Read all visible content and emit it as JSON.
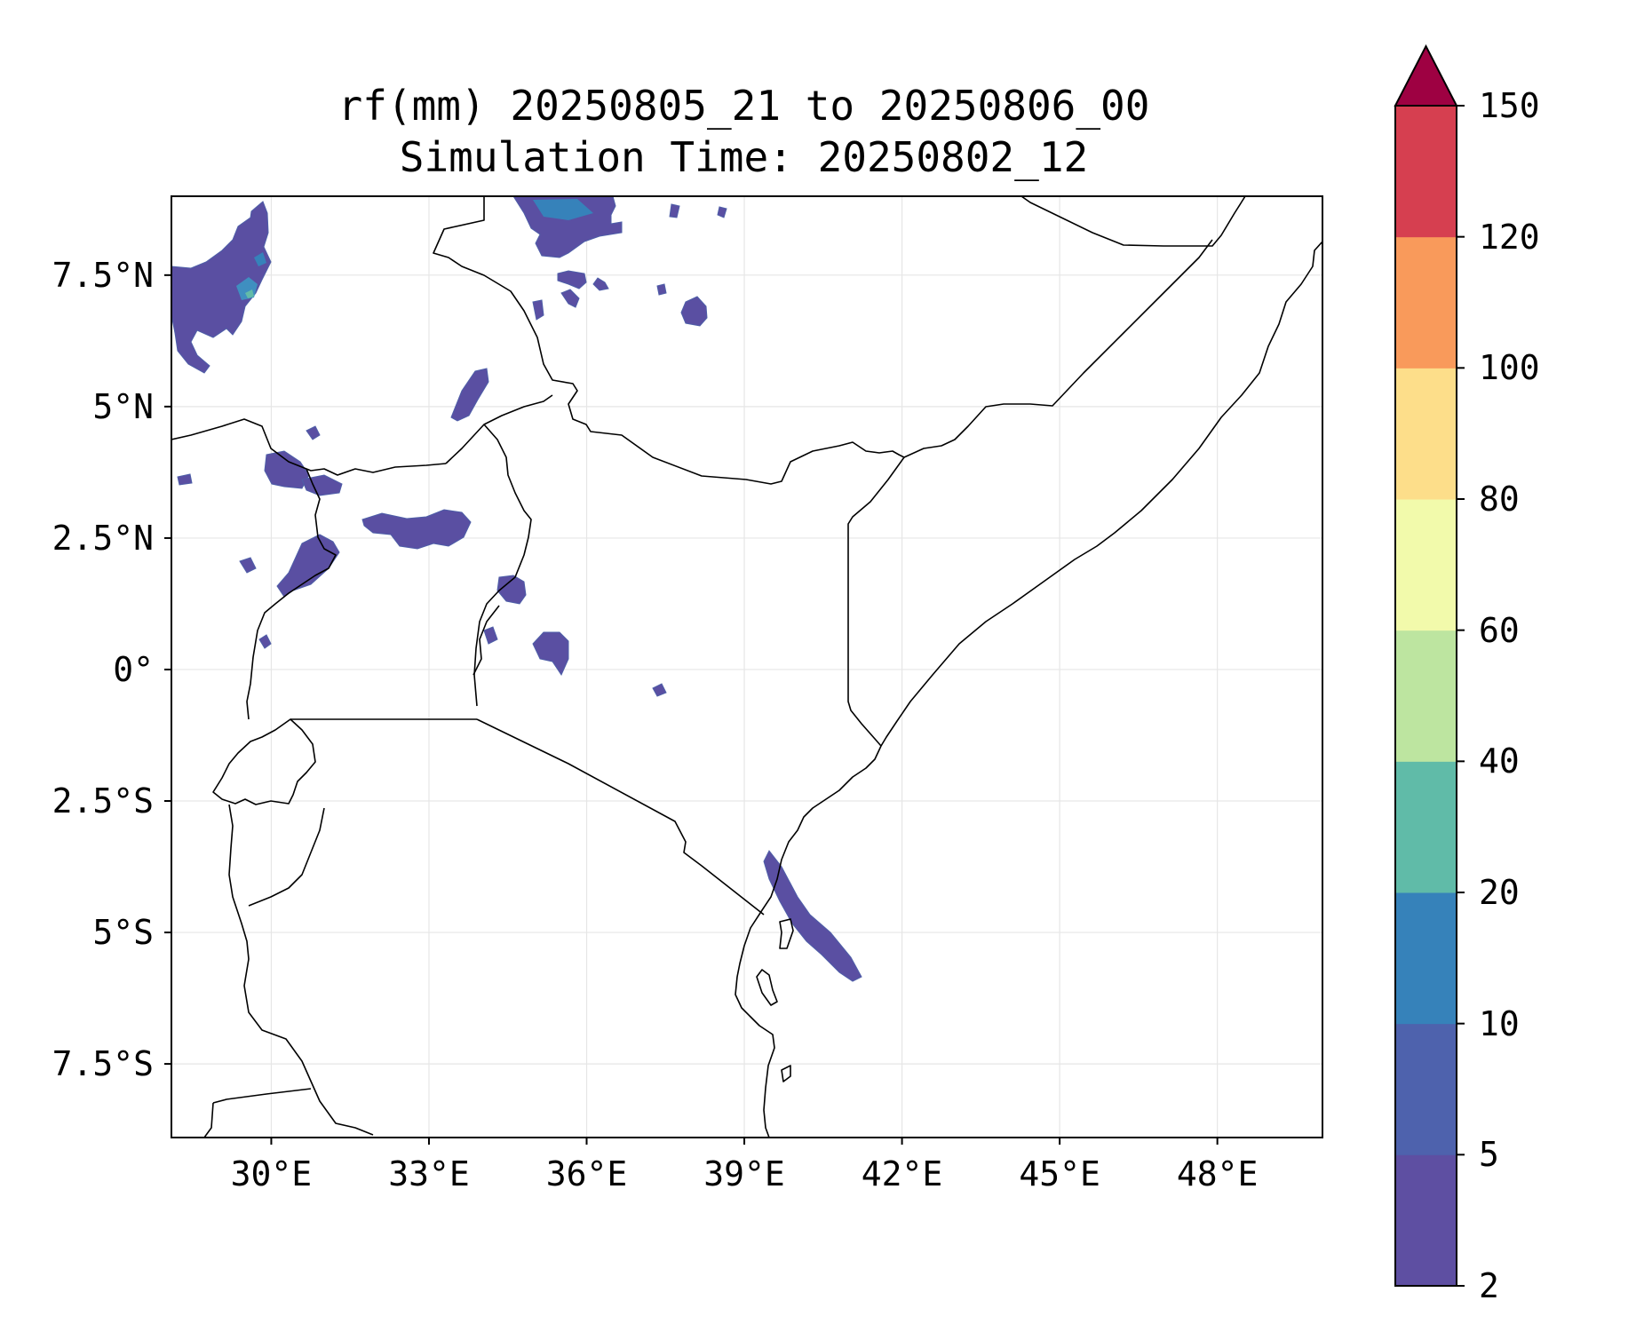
{
  "title": {
    "line1": "rf(mm) 20250805_21 to 20250806_00",
    "line2": "Simulation Time: 20250802_12"
  },
  "map": {
    "region": "East Africa",
    "lon_range": [
      28.1,
      50.0
    ],
    "lat_range": [
      -8.9,
      9.0
    ],
    "gridlines": true,
    "x_ticks": [
      {
        "value": 30,
        "label": "30°E"
      },
      {
        "value": 33,
        "label": "33°E"
      },
      {
        "value": 36,
        "label": "36°E"
      },
      {
        "value": 39,
        "label": "39°E"
      },
      {
        "value": 42,
        "label": "42°E"
      },
      {
        "value": 45,
        "label": "45°E"
      },
      {
        "value": 48,
        "label": "48°E"
      }
    ],
    "y_ticks": [
      {
        "value": 7.5,
        "label": "7.5°N"
      },
      {
        "value": 5,
        "label": "5°N"
      },
      {
        "value": 2.5,
        "label": "2.5°N"
      },
      {
        "value": 0,
        "label": "0°"
      },
      {
        "value": -2.5,
        "label": "2.5°S"
      },
      {
        "value": -5,
        "label": "5°S"
      },
      {
        "value": -7.5,
        "label": "7.5°S"
      }
    ]
  },
  "colorbar": {
    "extend": "max",
    "extend_color": "#9e0142",
    "levels": [
      {
        "value": 2,
        "label": "2"
      },
      {
        "value": 5,
        "label": "5"
      },
      {
        "value": 10,
        "label": "10"
      },
      {
        "value": 20,
        "label": "20"
      },
      {
        "value": 40,
        "label": "40"
      },
      {
        "value": 60,
        "label": "60"
      },
      {
        "value": 80,
        "label": "80"
      },
      {
        "value": 100,
        "label": "100"
      },
      {
        "value": 120,
        "label": "120"
      },
      {
        "value": 150,
        "label": "150"
      }
    ],
    "colors": [
      "#5e4fa2",
      "#4e62ad",
      "#3682ba",
      "#60bba8",
      "#bde5a0",
      "#f2faab",
      "#fdde8a",
      "#f99a5b",
      "#d63f50"
    ]
  }
}
